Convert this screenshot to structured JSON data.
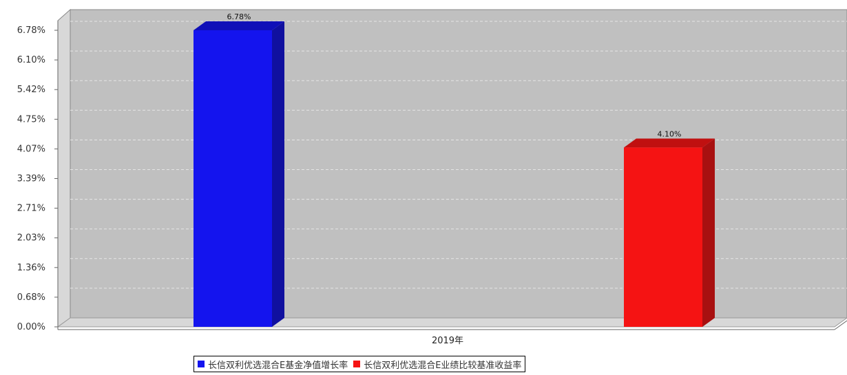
{
  "chart_data": {
    "type": "bar",
    "categories": [
      "2019年"
    ],
    "series": [
      {
        "name": "长信双利优选混合E基金净值增长率",
        "values": [
          6.78
        ],
        "value_labels": [
          "6.78%"
        ],
        "color": "#1414ee",
        "side_color": "#10109f",
        "top_color": "#1010b8"
      },
      {
        "name": "长信双利优选混合E业绩比较基准收益率",
        "values": [
          4.1
        ],
        "value_labels": [
          "4.10%"
        ],
        "color": "#f51313",
        "side_color": "#a81010",
        "top_color": "#c01010"
      }
    ],
    "y_ticks": [
      "0.00%",
      "0.68%",
      "1.36%",
      "2.03%",
      "2.71%",
      "3.39%",
      "4.07%",
      "4.75%",
      "5.42%",
      "6.10%",
      "6.78%"
    ],
    "ylim": [
      0,
      6.78
    ],
    "grid": true,
    "legend_position": "bottom",
    "plot_background": "#c0c0c0"
  }
}
